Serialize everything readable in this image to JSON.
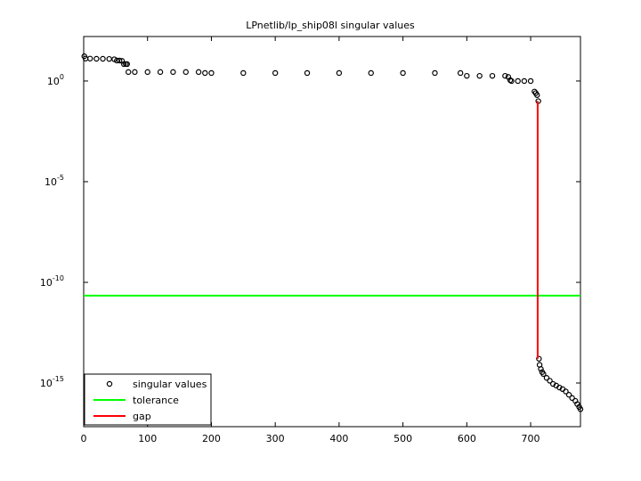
{
  "chart_data": {
    "type": "scatter",
    "title": "LPnetlib/lp_ship08l singular values",
    "xlim": [
      0,
      778
    ],
    "xticks": [
      0,
      100,
      200,
      300,
      400,
      500,
      600,
      700
    ],
    "ylim": [
      6.8e-18,
      162
    ],
    "log_y": true,
    "yticks": [
      {
        "value": 1e-15,
        "label": "10^-15"
      },
      {
        "value": 1e-10,
        "label": "10^-10"
      },
      {
        "value": 1e-05,
        "label": "10^-5"
      },
      {
        "value": 1,
        "label": "10^0"
      }
    ],
    "legend": "lower left",
    "series": [
      {
        "name": "singular values",
        "color": "#000000",
        "style": "marker",
        "x": [
          1,
          3,
          10,
          20,
          30,
          40,
          48,
          52,
          56,
          60,
          63,
          66,
          68,
          70,
          80,
          100,
          120,
          140,
          160,
          180,
          190,
          200,
          250,
          300,
          350,
          400,
          450,
          500,
          550,
          590,
          600,
          620,
          640,
          660,
          665,
          668,
          670,
          680,
          690,
          700,
          706,
          708,
          710,
          712,
          713,
          714,
          716,
          718,
          720,
          725,
          730,
          735,
          740,
          745,
          750,
          755,
          760,
          765,
          770,
          773,
          776,
          778
        ],
        "values": [
          17,
          13,
          13,
          12.7,
          12.7,
          12.5,
          12,
          10.4,
          10.4,
          10,
          6.9,
          6.9,
          6.9,
          2.8,
          2.8,
          2.8,
          2.8,
          2.8,
          2.8,
          2.8,
          2.5,
          2.5,
          2.5,
          2.5,
          2.5,
          2.5,
          2.5,
          2.5,
          2.5,
          2.5,
          1.8,
          1.8,
          1.8,
          1.8,
          1.6,
          1.1,
          1,
          1,
          1,
          1,
          0.3,
          0.25,
          0.2,
          0.1,
          1.6e-14,
          8e-15,
          5e-15,
          3.5e-15,
          2.8e-15,
          1.8e-15,
          1.3e-15,
          9e-16,
          7.5e-16,
          6e-16,
          5e-16,
          3.8e-16,
          2.6e-16,
          1.8e-16,
          1.3e-16,
          9e-17,
          6.5e-17,
          5e-17
        ]
      },
      {
        "name": "tolerance",
        "color": "#00ff00",
        "style": "line",
        "x": [
          0,
          778
        ],
        "values": [
          2.2e-11,
          2.2e-11
        ]
      },
      {
        "name": "gap",
        "color": "#ff0000",
        "style": "line",
        "x": [
          711,
          711
        ],
        "values": [
          0.1,
          1.6e-14
        ]
      }
    ]
  }
}
